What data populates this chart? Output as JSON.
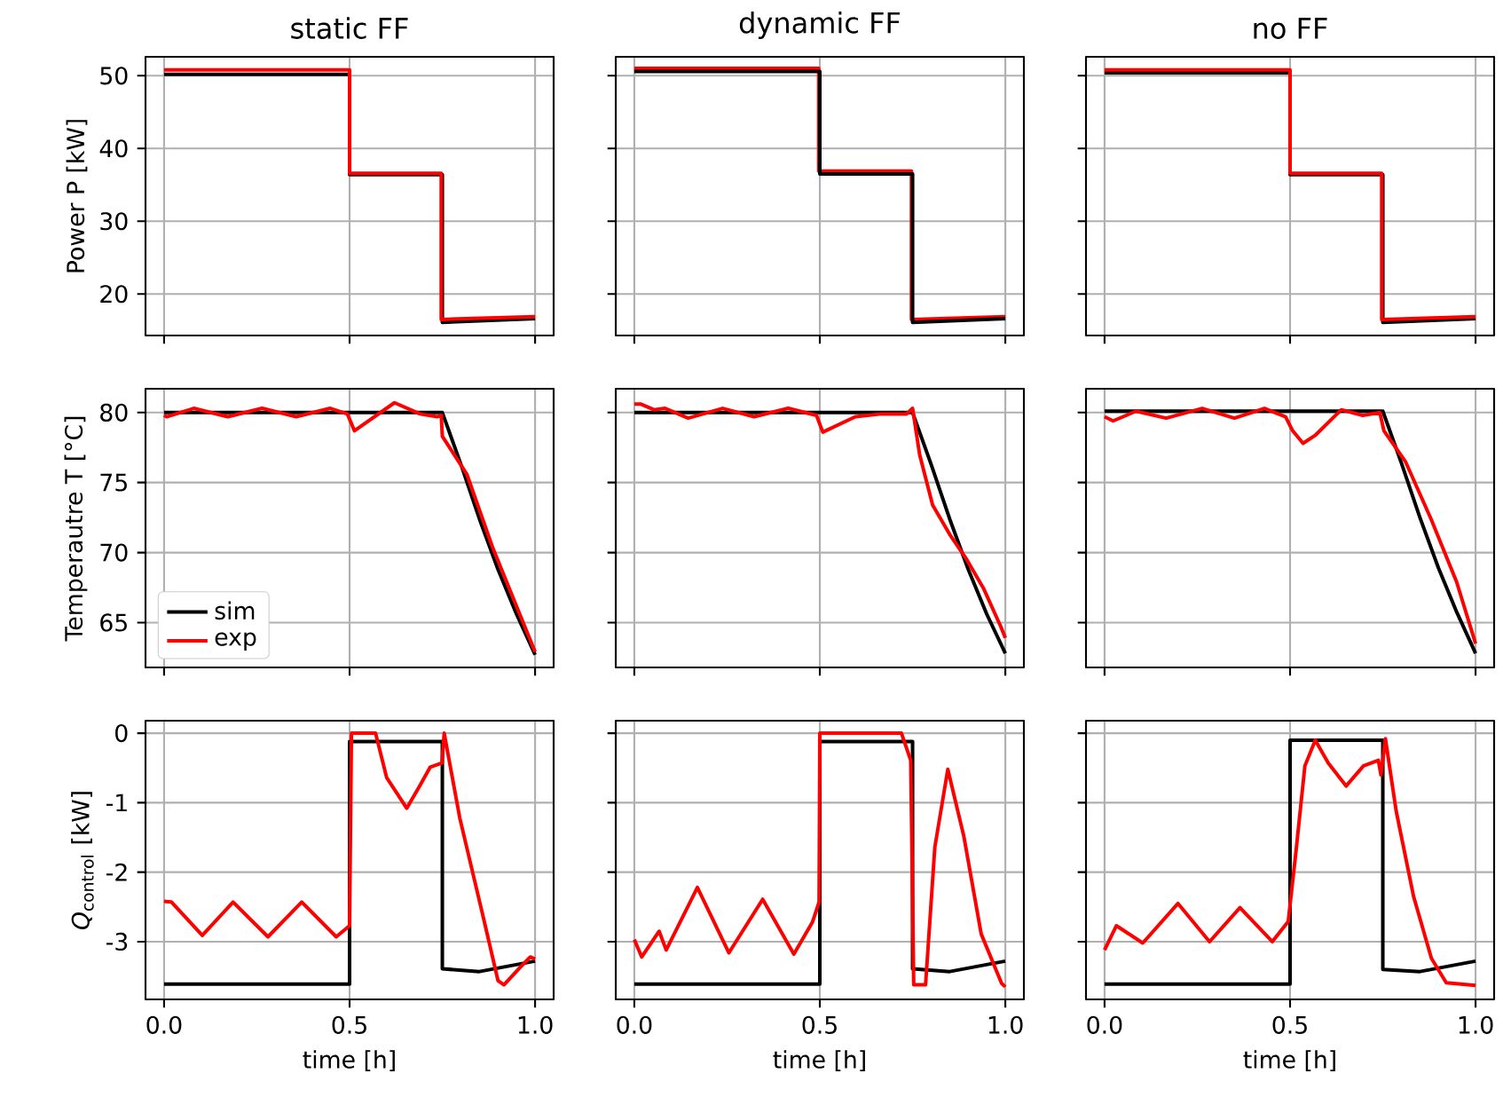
{
  "chart_data": [
    {
      "type": "line",
      "title": "static FF",
      "ylabel": "Power P [kW]",
      "xlim": [
        -0.05,
        1.05
      ],
      "ylim": [
        14.3,
        52.6
      ],
      "xticks": [
        {
          "value": 0,
          "label": null
        },
        {
          "value": 0.5,
          "label": null
        },
        {
          "value": 1.0,
          "label": null
        }
      ],
      "yticks": [
        20,
        30,
        40,
        50
      ],
      "grid": true,
      "tick_labels": "y",
      "series": [
        {
          "color": "#000000",
          "x": [
            0,
            0.5,
            0.5,
            0.75,
            0.75,
            1.0
          ],
          "values": [
            50.2,
            50.2,
            36.4,
            36.4,
            16.1,
            16.6
          ]
        },
        {
          "color": "#ff0000",
          "x": [
            0,
            0.5,
            0.5,
            0.747,
            0.747,
            1.0
          ],
          "values": [
            50.8,
            50.8,
            36.6,
            36.6,
            16.5,
            16.9
          ]
        }
      ]
    },
    {
      "type": "line",
      "title": "dynamic FF",
      "xlim": [
        -0.05,
        1.05
      ],
      "ylim": [
        14.3,
        52.6
      ],
      "xticks": [
        {
          "value": 0,
          "label": null
        },
        {
          "value": 0.5,
          "label": null
        },
        {
          "value": 1.0,
          "label": null
        }
      ],
      "yticks": [
        20,
        30,
        40,
        50
      ],
      "grid": true,
      "tick_labels": false,
      "series": [
        {
          "color": "#ff0000",
          "x": [
            0,
            0.497,
            0.497,
            0.747,
            0.747,
            1.0
          ],
          "values": [
            51.0,
            51.0,
            36.9,
            36.9,
            16.5,
            16.9
          ]
        },
        {
          "color": "#000000",
          "x": [
            0,
            0.5,
            0.5,
            0.75,
            0.75,
            1.0
          ],
          "values": [
            50.6,
            50.6,
            36.5,
            36.5,
            16.1,
            16.6
          ]
        }
      ]
    },
    {
      "type": "line",
      "title": "no FF",
      "xlim": [
        -0.05,
        1.05
      ],
      "ylim": [
        14.3,
        52.6
      ],
      "xticks": [
        {
          "value": 0,
          "label": null
        },
        {
          "value": 0.5,
          "label": null
        },
        {
          "value": 1.0,
          "label": null
        }
      ],
      "yticks": [
        20,
        30,
        40,
        50
      ],
      "grid": true,
      "tick_labels": false,
      "series": [
        {
          "color": "#000000",
          "x": [
            0,
            0.5,
            0.5,
            0.75,
            0.75,
            1.0
          ],
          "values": [
            50.4,
            50.4,
            36.4,
            36.4,
            16.1,
            16.6
          ]
        },
        {
          "color": "#ff0000",
          "x": [
            0,
            0.5,
            0.5,
            0.747,
            0.747,
            1.0
          ],
          "values": [
            50.8,
            50.8,
            36.6,
            36.6,
            16.5,
            16.9
          ]
        }
      ]
    },
    {
      "type": "line",
      "ylabel": "Temperautre T [°C]",
      "xlim": [
        -0.05,
        1.05
      ],
      "ylim": [
        61.8,
        81.7
      ],
      "xticks": [
        {
          "value": 0,
          "label": null
        },
        {
          "value": 0.5,
          "label": null
        },
        {
          "value": 1.0,
          "label": null
        }
      ],
      "yticks": [
        65,
        70,
        75,
        80
      ],
      "grid": true,
      "tick_labels": "y",
      "legend": "bottom left",
      "series": [
        {
          "name": "sim",
          "color": "#000000",
          "x": [
            0,
            0.75,
            0.8,
            0.85,
            0.9,
            0.95,
            1.0
          ],
          "values": [
            80.0,
            80.0,
            76.3,
            72.4,
            68.8,
            65.6,
            62.7
          ]
        },
        {
          "name": "exp",
          "color": "#ff0000",
          "x": [
            0,
            0.007,
            0.08,
            0.172,
            0.264,
            0.356,
            0.448,
            0.494,
            0.513,
            0.621,
            0.69,
            0.736,
            0.747,
            0.75,
            0.816,
            0.885,
            0.954,
            1.0
          ],
          "values": [
            79.8,
            79.7,
            80.3,
            79.7,
            80.3,
            79.7,
            80.3,
            79.9,
            78.7,
            80.7,
            79.9,
            79.7,
            79.8,
            78.3,
            75.6,
            70.4,
            65.9,
            62.9
          ]
        }
      ]
    },
    {
      "type": "line",
      "xlim": [
        -0.05,
        1.05
      ],
      "ylim": [
        61.8,
        81.7
      ],
      "xticks": [
        {
          "value": 0,
          "label": null
        },
        {
          "value": 0.5,
          "label": null
        },
        {
          "value": 1.0,
          "label": null
        }
      ],
      "yticks": [
        65,
        70,
        75,
        80
      ],
      "grid": true,
      "tick_labels": false,
      "series": [
        {
          "color": "#000000",
          "x": [
            0,
            0.75,
            0.8,
            0.85,
            0.9,
            0.95,
            1.0
          ],
          "values": [
            80.0,
            80.0,
            76.3,
            72.4,
            68.8,
            65.6,
            62.8
          ]
        },
        {
          "color": "#ff0000",
          "x": [
            0,
            0.018,
            0.053,
            0.083,
            0.145,
            0.238,
            0.323,
            0.415,
            0.491,
            0.508,
            0.596,
            0.665,
            0.734,
            0.75,
            0.769,
            0.804,
            0.85,
            0.896,
            0.942,
            0.988,
            1.0
          ],
          "values": [
            80.6,
            80.6,
            80.2,
            80.3,
            79.6,
            80.3,
            79.7,
            80.3,
            79.8,
            78.6,
            79.7,
            79.9,
            79.9,
            80.3,
            77.0,
            73.4,
            71.3,
            69.5,
            67.4,
            64.7,
            63.9
          ]
        }
      ]
    },
    {
      "type": "line",
      "xlim": [
        -0.05,
        1.05
      ],
      "ylim": [
        61.8,
        81.7
      ],
      "xticks": [
        {
          "value": 0,
          "label": null
        },
        {
          "value": 0.5,
          "label": null
        },
        {
          "value": 1.0,
          "label": null
        }
      ],
      "yticks": [
        65,
        70,
        75,
        80
      ],
      "grid": true,
      "tick_labels": false,
      "series": [
        {
          "color": "#000000",
          "x": [
            0,
            0.75,
            0.8,
            0.85,
            0.9,
            0.95,
            1.0
          ],
          "values": [
            80.1,
            80.1,
            76.4,
            72.5,
            68.9,
            65.7,
            62.8
          ]
        },
        {
          "color": "#ff0000",
          "x": [
            0,
            0.023,
            0.085,
            0.166,
            0.263,
            0.35,
            0.431,
            0.488,
            0.507,
            0.535,
            0.569,
            0.638,
            0.696,
            0.742,
            0.753,
            0.811,
            0.88,
            0.949,
            1.0
          ],
          "values": [
            79.7,
            79.4,
            80.1,
            79.6,
            80.3,
            79.6,
            80.3,
            79.7,
            78.7,
            77.8,
            78.4,
            80.2,
            79.8,
            80.0,
            78.7,
            76.5,
            72.4,
            67.9,
            63.5
          ]
        }
      ]
    },
    {
      "type": "line",
      "xlabel": "time [h]",
      "ylabel": "*Q*$_{control}$ [kW]",
      "xlim": [
        -0.05,
        1.05
      ],
      "ylim": [
        -3.83,
        0.18
      ],
      "xticks": [
        {
          "value": 0,
          "label": "0.0"
        },
        {
          "value": 0.5,
          "label": "0.5"
        },
        {
          "value": 1.0,
          "label": "1.0"
        }
      ],
      "yticks": [
        -3,
        -2,
        -1,
        0
      ],
      "grid": true,
      "series": [
        {
          "color": "#000000",
          "x": [
            0,
            0.5,
            0.5,
            0.75,
            0.75,
            0.85,
            1.0
          ],
          "values": [
            -3.61,
            -3.61,
            -0.12,
            -0.12,
            -3.39,
            -3.43,
            -3.28
          ]
        },
        {
          "color": "#ff0000",
          "x": [
            0,
            0.02,
            0.103,
            0.186,
            0.28,
            0.371,
            0.464,
            0.5,
            0.505,
            0.57,
            0.6,
            0.654,
            0.69,
            0.717,
            0.749,
            0.755,
            0.797,
            0.86,
            0.9,
            0.916,
            0.956,
            0.987,
            1.0
          ],
          "values": [
            -2.42,
            -2.43,
            -2.91,
            -2.43,
            -2.93,
            -2.43,
            -2.93,
            -2.77,
            0,
            0,
            -0.64,
            -1.08,
            -0.75,
            -0.49,
            -0.43,
            0,
            -1.22,
            -2.64,
            -3.56,
            -3.62,
            -3.39,
            -3.22,
            -3.25
          ]
        }
      ]
    },
    {
      "type": "line",
      "xlabel": "time [h]",
      "xlim": [
        -0.05,
        1.05
      ],
      "ylim": [
        -3.83,
        0.18
      ],
      "xticks": [
        {
          "value": 0,
          "label": "0.0"
        },
        {
          "value": 0.5,
          "label": "0.5"
        },
        {
          "value": 1.0,
          "label": "1.0"
        }
      ],
      "yticks": [
        -3,
        -2,
        -1,
        0
      ],
      "grid": true,
      "tick_labels": "x",
      "series": [
        {
          "color": "#000000",
          "x": [
            0,
            0.5,
            0.5,
            0.75,
            0.75,
            0.85,
            1.0
          ],
          "values": [
            -3.61,
            -3.61,
            -0.12,
            -0.12,
            -3.39,
            -3.43,
            -3.28
          ]
        },
        {
          "color": "#ff0000",
          "x": [
            0,
            0.02,
            0.067,
            0.086,
            0.17,
            0.255,
            0.346,
            0.43,
            0.48,
            0.498,
            0.5,
            0.72,
            0.745,
            0.753,
            0.785,
            0.81,
            0.845,
            0.888,
            0.935,
            0.99,
            1.0
          ],
          "values": [
            -2.97,
            -3.22,
            -2.85,
            -3.12,
            -2.22,
            -3.16,
            -2.39,
            -3.18,
            -2.72,
            -2.43,
            0,
            0,
            -0.39,
            -3.62,
            -3.62,
            -1.64,
            -0.52,
            -1.48,
            -2.89,
            -3.6,
            -3.65
          ]
        }
      ]
    },
    {
      "type": "line",
      "xlabel": "time [h]",
      "xlim": [
        -0.05,
        1.05
      ],
      "ylim": [
        -3.83,
        0.18
      ],
      "xticks": [
        {
          "value": 0,
          "label": "0.0"
        },
        {
          "value": 0.5,
          "label": "0.5"
        },
        {
          "value": 1.0,
          "label": "1.0"
        }
      ],
      "yticks": [
        -3,
        -2,
        -1,
        0
      ],
      "grid": true,
      "tick_labels": "x",
      "series": [
        {
          "color": "#000000",
          "x": [
            0,
            0.5,
            0.5,
            0.75,
            0.75,
            0.85,
            1.0
          ],
          "values": [
            -3.61,
            -3.61,
            -0.1,
            -0.1,
            -3.4,
            -3.43,
            -3.28
          ]
        },
        {
          "color": "#ff0000",
          "x": [
            0,
            0.032,
            0.103,
            0.198,
            0.283,
            0.365,
            0.452,
            0.495,
            0.516,
            0.54,
            0.568,
            0.603,
            0.651,
            0.698,
            0.738,
            0.745,
            0.757,
            0.786,
            0.833,
            0.881,
            0.921,
            1.0
          ],
          "values": [
            -3.12,
            -2.77,
            -3.02,
            -2.45,
            -3.0,
            -2.51,
            -3.0,
            -2.71,
            -1.7,
            -0.47,
            -0.1,
            -0.43,
            -0.76,
            -0.47,
            -0.39,
            -0.6,
            -0.08,
            -1.12,
            -2.35,
            -3.24,
            -3.59,
            -3.63
          ]
        }
      ]
    }
  ]
}
